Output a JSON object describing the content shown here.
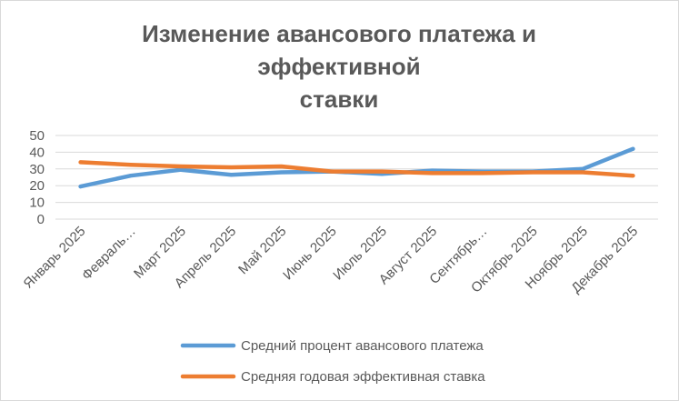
{
  "chart_data": {
    "type": "line",
    "title_lines": [
      "Изменение авансового платежа и",
      "эффективной",
      "ставки"
    ],
    "categories": [
      "Январь 2025",
      "Февраль…",
      "Март 2025",
      "Апрель 2025",
      "Май 2025",
      "Июнь 2025",
      "Июль 2025",
      "Август 2025",
      "Сентябрь…",
      "Октябрь 2025",
      "Ноябрь 2025",
      "Декабрь 2025"
    ],
    "ylim": [
      0,
      50
    ],
    "yticks": [
      0,
      10,
      20,
      30,
      40,
      50
    ],
    "grid": true,
    "legend_position": "bottom",
    "series": [
      {
        "name": "Средний процент авансового платежа",
        "color": "#5b9bd5",
        "values": [
          19.5,
          26,
          29.5,
          26.5,
          28,
          28.5,
          27,
          29,
          28.5,
          28.5,
          30,
          42
        ]
      },
      {
        "name": "Средняя годовая эффективная ставка",
        "color": "#ed7d31",
        "values": [
          34,
          32.5,
          31.5,
          31,
          31.5,
          28.5,
          28.5,
          27.5,
          27.5,
          28,
          28,
          26
        ]
      }
    ]
  }
}
